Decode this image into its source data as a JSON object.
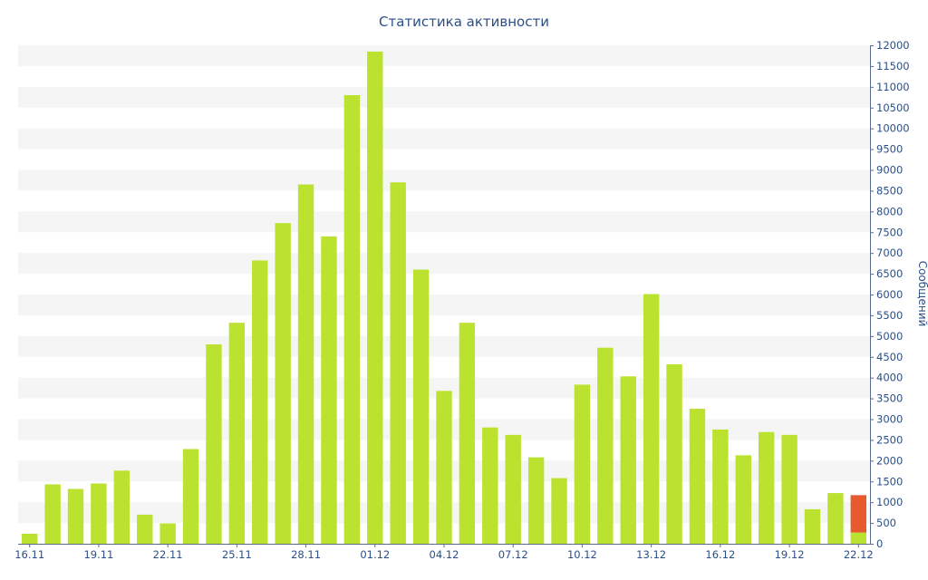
{
  "chart_data": {
    "type": "bar",
    "title": "Статистика активности",
    "ylabel": "Сообщений",
    "xlabel": "",
    "ylim": [
      0,
      12000
    ],
    "ytick_step": 500,
    "grid": "alternating horizontal bands",
    "y_axis_position": "right",
    "x_tick_labels": [
      "16.11",
      "19.11",
      "22.11",
      "25.11",
      "28.11",
      "01.12",
      "04.12",
      "07.12",
      "10.12",
      "13.12",
      "16.12",
      "19.12",
      "22.12"
    ],
    "categories": [
      "16.11",
      "17.11",
      "18.11",
      "19.11",
      "20.11",
      "21.11",
      "22.11",
      "23.11",
      "24.11",
      "25.11",
      "26.11",
      "27.11",
      "28.11",
      "29.11",
      "30.11",
      "01.12",
      "02.12",
      "03.12",
      "04.12",
      "05.12",
      "06.12",
      "07.12",
      "08.12",
      "09.12",
      "10.12",
      "11.12",
      "12.12",
      "13.12",
      "14.12",
      "15.12",
      "16.12",
      "17.12",
      "18.12",
      "19.12",
      "20.12",
      "21.12",
      "22.12"
    ],
    "series": [
      {
        "color": "#bbe22e",
        "values": [
          240,
          1430,
          1320,
          1450,
          1760,
          700,
          490,
          2280,
          4800,
          5320,
          6820,
          7720,
          8650,
          7400,
          10800,
          11850,
          8700,
          6600,
          3680,
          5320,
          2800,
          2620,
          2080,
          1580,
          3830,
          4720,
          4030,
          6010,
          4320,
          3250,
          2750,
          2130,
          2690,
          2620,
          830,
          1220,
          270
        ]
      },
      {
        "color": "#e65a2e",
        "values": [
          0,
          0,
          0,
          0,
          0,
          0,
          0,
          0,
          0,
          0,
          0,
          0,
          0,
          0,
          0,
          0,
          0,
          0,
          0,
          0,
          0,
          0,
          0,
          0,
          0,
          0,
          0,
          0,
          0,
          0,
          0,
          0,
          0,
          0,
          0,
          0,
          900
        ]
      }
    ],
    "colors": {
      "text": "#2b4f88",
      "band": "#f5f5f5",
      "axis": "#5a6b8c"
    }
  }
}
